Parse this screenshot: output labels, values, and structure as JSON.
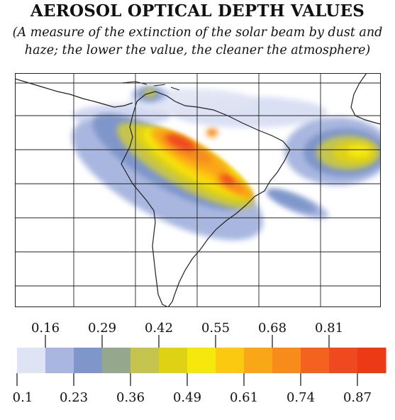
{
  "title": "AEROSOL OPTICAL DEPTH VALUES",
  "subtitle_line1": "(A measure of the extinction of the solar beam by dust and",
  "subtitle_line2": "haze; the lower the value, the cleaner the atmosphere)",
  "legend": {
    "top_labels": [
      "0.16",
      "0.29",
      "0.42",
      "0.55",
      "0.68",
      "0.81"
    ],
    "bottom_labels": [
      "0.1",
      "0.23",
      "0.36",
      "0.49",
      "0.61",
      "0.74",
      "0.87"
    ],
    "colors": [
      "#dfe4f4",
      "#a9b7e0",
      "#7f96cb",
      "#95a88e",
      "#c5c44e",
      "#dfd214",
      "#f6e80c",
      "#fcc911",
      "#f9a717",
      "#f78c1a",
      "#f3621f",
      "#ef4a1f",
      "#ec3a16"
    ]
  },
  "map": {
    "land_color": "#ffffff",
    "coast_color": "#222222",
    "grid_color": "#222222"
  }
}
